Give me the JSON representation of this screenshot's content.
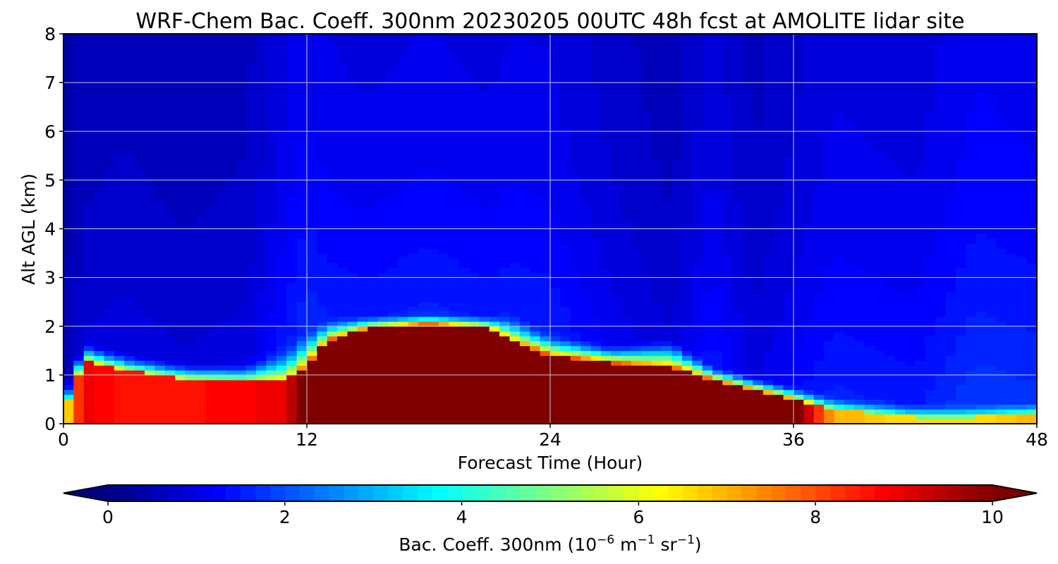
{
  "chart_data": {
    "type": "heatmap",
    "title": "WRF-Chem Bac. Coeff. 300nm  20230205 00UTC 48h fcst at AMOLITE lidar site",
    "xlabel": "Forecast Time (Hour)",
    "ylabel": "Alt AGL (km)",
    "xlim": [
      0,
      48
    ],
    "ylim": [
      0,
      8
    ],
    "xticks": [
      0,
      12,
      24,
      36,
      48
    ],
    "yticks": [
      0,
      1,
      2,
      3,
      4,
      5,
      6,
      7,
      8
    ],
    "grid": true,
    "colormap": "jet",
    "colorbar": {
      "label_main": "Bac. Coeff. 300nm  (10",
      "label_exp1": "−6",
      "label_unit_m": " m",
      "label_exp2": "−1",
      "label_unit_sr": " sr",
      "label_exp3": "−1",
      "label_close": ")",
      "range": [
        0,
        10
      ],
      "ticks": [
        0,
        2,
        4,
        6,
        8,
        10
      ],
      "extend": "both",
      "levels": 60
    },
    "profile_hours": [
      0,
      1,
      3,
      6,
      9,
      11,
      12,
      13,
      15,
      18,
      21,
      22,
      24,
      27,
      30,
      32,
      34,
      36,
      38,
      42,
      45,
      48
    ],
    "boundary_layer_top_km": [
      0.2,
      1.3,
      1.1,
      0.9,
      0.85,
      0.9,
      1.2,
      1.7,
      1.95,
      2.05,
      1.95,
      1.7,
      1.4,
      1.25,
      1.15,
      0.9,
      0.7,
      0.5,
      0.3,
      0.15,
      0.15,
      0.2
    ],
    "boundary_layer_value": [
      6,
      9,
      8.5,
      8.6,
      8.8,
      9,
      10.5,
      11,
      11,
      11,
      11,
      11,
      11,
      11,
      11,
      11,
      11,
      10.5,
      7,
      6.5,
      6.5,
      7
    ],
    "background_aloft_value": [
      0.6,
      0.9,
      1.0,
      0.9,
      1.0,
      1.6,
      1.8,
      1.6,
      1.5,
      1.6,
      1.5,
      1.6,
      1.6,
      1.2,
      0.9,
      1.5,
      1.0,
      1.3,
      1.6,
      1.5,
      1.9,
      1.8
    ],
    "transition_depth_km": [
      0.5,
      0.45,
      0.4,
      0.4,
      0.45,
      0.8,
      0.8,
      0.5,
      0.3,
      0.25,
      0.3,
      0.6,
      0.5,
      0.4,
      0.7,
      0.3,
      0.3,
      0.3,
      0.3,
      0.3,
      0.3,
      0.3
    ]
  }
}
